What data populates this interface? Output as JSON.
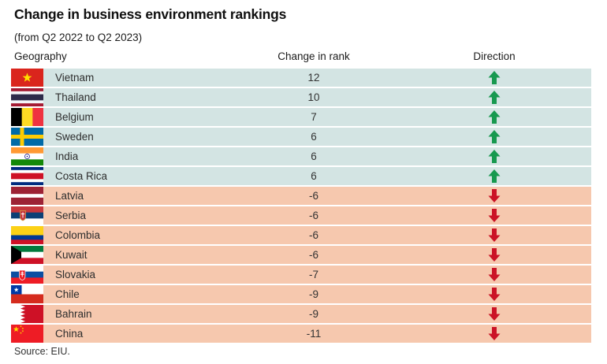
{
  "chart_data": {
    "type": "table",
    "title": "Change in business environment rankings",
    "subtitle": "(from Q2 2022 to Q2 2023)",
    "columns": {
      "geography": "Geography",
      "change": "Change in rank",
      "direction": "Direction"
    },
    "rows": [
      {
        "geography": "Vietnam",
        "flag": "vietnam-flag",
        "change": "12",
        "direction": "up"
      },
      {
        "geography": "Thailand",
        "flag": "thailand-flag",
        "change": "10",
        "direction": "up"
      },
      {
        "geography": "Belgium",
        "flag": "belgium-flag",
        "change": "7",
        "direction": "up"
      },
      {
        "geography": "Sweden",
        "flag": "sweden-flag",
        "change": "6",
        "direction": "up"
      },
      {
        "geography": "India",
        "flag": "india-flag",
        "change": "6",
        "direction": "up"
      },
      {
        "geography": "Costa Rica",
        "flag": "costa-rica-flag",
        "change": "6",
        "direction": "up"
      },
      {
        "geography": "Latvia",
        "flag": "latvia-flag",
        "change": "-6",
        "direction": "down"
      },
      {
        "geography": "Serbia",
        "flag": "serbia-flag",
        "change": "-6",
        "direction": "down"
      },
      {
        "geography": "Colombia",
        "flag": "colombia-flag",
        "change": "-6",
        "direction": "down"
      },
      {
        "geography": "Kuwait",
        "flag": "kuwait-flag",
        "change": "-6",
        "direction": "down"
      },
      {
        "geography": "Slovakia",
        "flag": "slovakia-flag",
        "change": "-7",
        "direction": "down"
      },
      {
        "geography": "Chile",
        "flag": "chile-flag",
        "change": "-9",
        "direction": "down"
      },
      {
        "geography": "Bahrain",
        "flag": "bahrain-flag",
        "change": "-9",
        "direction": "down"
      },
      {
        "geography": "China",
        "flag": "china-flag",
        "change": "-11",
        "direction": "down"
      }
    ],
    "source": "Source: EIU."
  },
  "colors": {
    "up_row_bg": "#d3e4e3",
    "down_row_bg": "#f6c8ae",
    "up_arrow": "#17994f",
    "down_arrow": "#cb1326"
  }
}
